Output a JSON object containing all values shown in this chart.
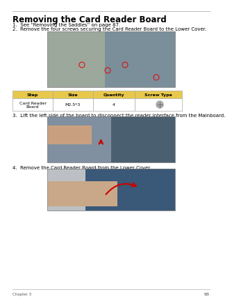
{
  "title": "Removing the Card Reader Board",
  "bg_color": "#ffffff",
  "line_color": "#bbbbbb",
  "title_color": "#000000",
  "title_fontsize": 8.5,
  "body_fontsize": 5.0,
  "steps": [
    "1.  See “Removing the Saddles” on page 87.",
    "2.  Remove the four screws securing the Card Reader Board to the Lower Cover."
  ],
  "step3": "3.  Lift the left side of the board to disconnect the reader interface from the Mainboard.",
  "step4": "4.  Remove the Card Reader Board from the Lower Cover.",
  "table_headers": [
    "Step",
    "Size",
    "Quantity",
    "Screw Type"
  ],
  "table_row": [
    "Card Reader\nBoard",
    "M2.5*3",
    "4",
    ""
  ],
  "table_header_bg": "#e8c84a",
  "table_header_color": "#000000",
  "table_row_bg": "#ffffff",
  "table_border": "#aaaaaa",
  "footer_text": "93",
  "footer_left": "Chapter 3",
  "img1_color": "#c0bfbe",
  "img2_color": "#b8bfc8",
  "img3_color": "#bcc0c4"
}
